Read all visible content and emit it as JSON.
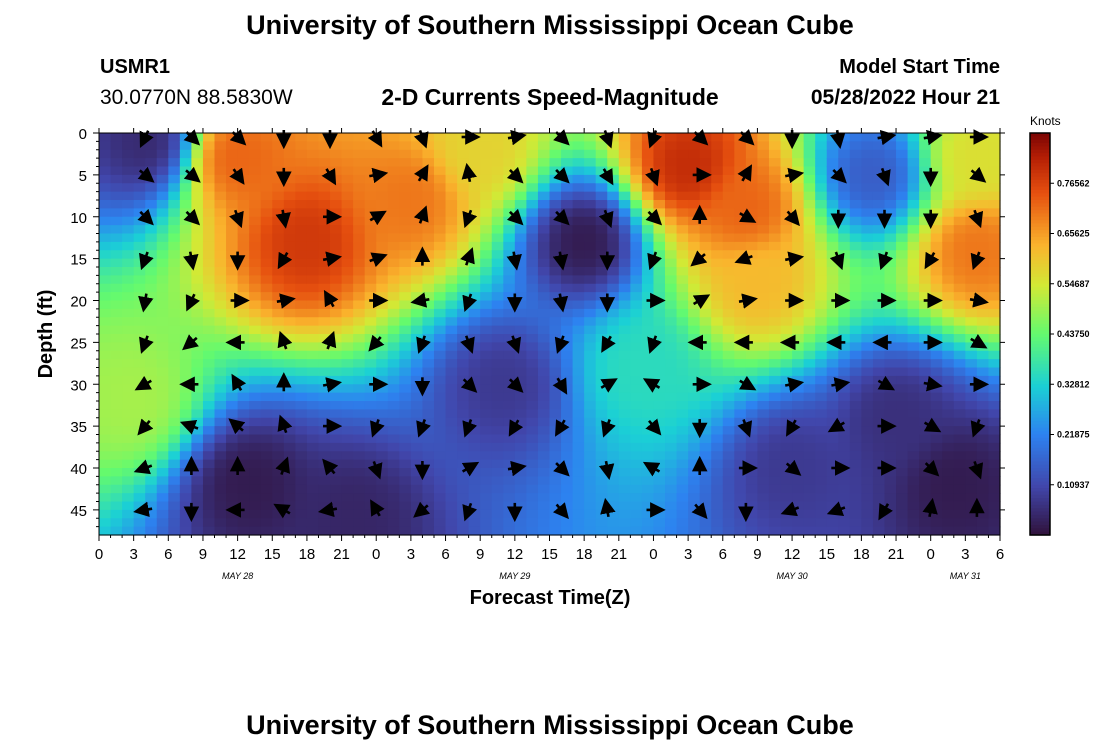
{
  "header": {
    "title": "University of Southern Mississippi Ocean Cube",
    "station_id": "USMR1",
    "station_location": "30.0770N  88.5830W",
    "plot_title": "2-D Currents Speed-Magnitude",
    "start_label": "Model Start Time",
    "start_value": "05/28/2022 Hour 21"
  },
  "footer": {
    "title": "University of Southern Mississippi Ocean Cube"
  },
  "chart_data": {
    "type": "heatmap",
    "title": "2-D Currents Speed-Magnitude",
    "xlabel": "Forecast Time(Z)",
    "ylabel": "Depth (ft)",
    "x_tick_labels": [
      "0",
      "3",
      "6",
      "9",
      "12",
      "15",
      "18",
      "21",
      "0",
      "3",
      "6",
      "9",
      "12",
      "15",
      "18",
      "21",
      "0",
      "3",
      "6",
      "9",
      "12",
      "15",
      "18",
      "21",
      "0",
      "3",
      "6"
    ],
    "x_date_labels": [
      {
        "label": "MAY 28",
        "hour_index": 12
      },
      {
        "label": "MAY 29",
        "hour_index": 36
      },
      {
        "label": "MAY 30",
        "hour_index": 60
      },
      {
        "label": "MAY 31",
        "hour_index": 75
      }
    ],
    "xlim": [
      0,
      78
    ],
    "y_ticks": [
      0,
      5,
      10,
      15,
      20,
      25,
      30,
      35,
      40,
      45
    ],
    "ylim": [
      0,
      48
    ],
    "colorbar": {
      "unit_label": "Knots",
      "ticks": [
        "0.10937",
        "0.21875",
        "0.32812",
        "0.43750",
        "0.54687",
        "0.65625",
        "0.76562"
      ],
      "tick_values": [
        0.10937,
        0.21875,
        0.32812,
        0.4375,
        0.54687,
        0.65625,
        0.76562
      ],
      "range": [
        0,
        0.875
      ]
    },
    "hot_spots": [
      {
        "t": 18,
        "d": 13,
        "speed": 0.78
      },
      {
        "t": 27,
        "d": 8,
        "speed": 0.7
      },
      {
        "t": 3,
        "d": 32,
        "speed": 0.5
      },
      {
        "t": 12,
        "d": 3,
        "speed": 0.72
      },
      {
        "t": 51,
        "d": 4,
        "speed": 0.8
      },
      {
        "t": 56,
        "d": 9,
        "speed": 0.72
      },
      {
        "t": 57,
        "d": 18,
        "speed": 0.62
      },
      {
        "t": 33,
        "d": 2,
        "speed": 0.58
      },
      {
        "t": 76,
        "d": 14,
        "speed": 0.7
      },
      {
        "t": 76,
        "d": 3,
        "speed": 0.56
      },
      {
        "t": 47,
        "d": 28,
        "speed": 0.35
      }
    ],
    "cold_spots": [
      {
        "t": 4,
        "d": 1,
        "speed": 0.05
      },
      {
        "t": 42,
        "d": 13,
        "speed": 0.02
      },
      {
        "t": 13,
        "d": 42,
        "speed": 0.02
      },
      {
        "t": 22,
        "d": 46,
        "speed": 0.04
      },
      {
        "t": 74,
        "d": 42,
        "speed": 0.02
      },
      {
        "t": 67,
        "d": 5,
        "speed": 0.15
      },
      {
        "t": 69,
        "d": 34,
        "speed": 0.06
      },
      {
        "t": 35,
        "d": 30,
        "speed": 0.08
      },
      {
        "t": 60,
        "d": 40,
        "speed": 0.08
      }
    ],
    "vectors": {
      "times": [
        4,
        8,
        12,
        16,
        20,
        24,
        28,
        32,
        36,
        40,
        44,
        48,
        52,
        56,
        60,
        64,
        68,
        72,
        76
      ],
      "depths": [
        0,
        5,
        10,
        15,
        20,
        25,
        30,
        35,
        40,
        45
      ],
      "direction_deg": [
        [
          205,
          135,
          135,
          180,
          180,
          150,
          160,
          90,
          80,
          135,
          160,
          200,
          135,
          135,
          180,
          170,
          80,
          80,
          90
        ],
        [
          130,
          130,
          145,
          180,
          150,
          80,
          30,
          350,
          135,
          135,
          150,
          160,
          90,
          30,
          80,
          135,
          160,
          180,
          130
        ],
        [
          135,
          135,
          160,
          170,
          90,
          60,
          20,
          200,
          135,
          135,
          160,
          135,
          0,
          120,
          140,
          180,
          180,
          180,
          160
        ],
        [
          200,
          170,
          180,
          210,
          80,
          70,
          0,
          20,
          170,
          170,
          180,
          200,
          230,
          250,
          80,
          160,
          200,
          210,
          200
        ],
        [
          190,
          205,
          90,
          80,
          330,
          90,
          260,
          200,
          180,
          170,
          180,
          90,
          60,
          80,
          90,
          90,
          90,
          90,
          100
        ],
        [
          200,
          230,
          270,
          340,
          20,
          220,
          200,
          160,
          160,
          200,
          210,
          200,
          270,
          270,
          270,
          270,
          270,
          90,
          120
        ],
        [
          240,
          270,
          330,
          0,
          80,
          90,
          180,
          135,
          135,
          150,
          60,
          300,
          90,
          120,
          80,
          80,
          120,
          100,
          90
        ],
        [
          220,
          290,
          310,
          340,
          90,
          200,
          200,
          200,
          210,
          210,
          200,
          140,
          180,
          160,
          210,
          240,
          90,
          120,
          200
        ],
        [
          250,
          0,
          0,
          20,
          320,
          160,
          180,
          60,
          80,
          135,
          170,
          300,
          0,
          90,
          130,
          90,
          90,
          135,
          160
        ],
        [
          260,
          180,
          270,
          300,
          260,
          330,
          230,
          200,
          180,
          140,
          350,
          90,
          140,
          180,
          250,
          250,
          210,
          10,
          0
        ]
      ]
    }
  }
}
